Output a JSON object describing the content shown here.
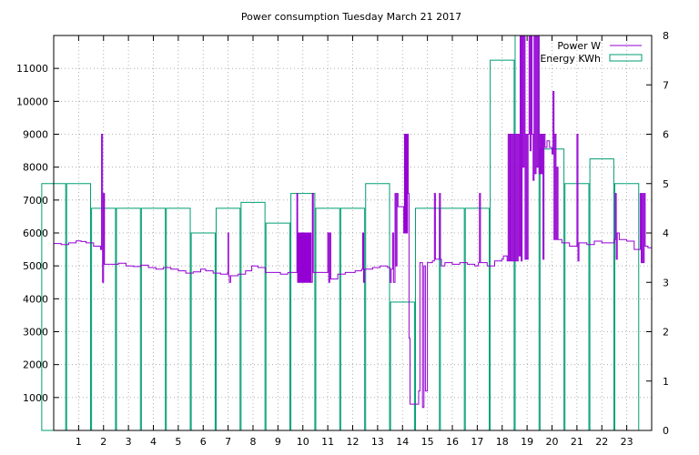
{
  "chart_data": {
    "type": "bar+line",
    "title": "Power consumption Tuesday March 21 2017",
    "xlim": [
      0,
      24
    ],
    "ylim": [
      0,
      12000
    ],
    "y2lim": [
      0,
      8
    ],
    "x_ticks": [
      "1",
      "2",
      "3",
      "4",
      "5",
      "6",
      "7",
      "8",
      "9",
      "10",
      "11",
      "12",
      "13",
      "14",
      "15",
      "16",
      "17",
      "18",
      "19",
      "20",
      "21",
      "22",
      "23"
    ],
    "y_ticks": [
      "1000",
      "2000",
      "3000",
      "4000",
      "5000",
      "6000",
      "7000",
      "8000",
      "9000",
      "10000",
      "11000"
    ],
    "y2_ticks": [
      "0",
      "1",
      "2",
      "3",
      "4",
      "5",
      "6",
      "7",
      "8"
    ],
    "grid": true,
    "legend_position": "top-right",
    "colors": {
      "power": "#9400d3",
      "energy": "#009e73"
    },
    "series": [
      {
        "name": "Power W",
        "axis": "y",
        "style": "line",
        "points": [
          [
            0.0,
            5680
          ],
          [
            0.3,
            5650
          ],
          [
            0.6,
            5700
          ],
          [
            0.9,
            5760
          ],
          [
            1.1,
            5740
          ],
          [
            1.3,
            5700
          ],
          [
            1.6,
            5600
          ],
          [
            1.88,
            5500
          ],
          [
            1.92,
            9000
          ],
          [
            1.96,
            4500
          ],
          [
            2.0,
            7200
          ],
          [
            2.04,
            5050
          ],
          [
            2.3,
            5050
          ],
          [
            2.6,
            5080
          ],
          [
            2.9,
            5000
          ],
          [
            3.2,
            4980
          ],
          [
            3.5,
            5020
          ],
          [
            3.8,
            4950
          ],
          [
            4.1,
            4900
          ],
          [
            4.4,
            4950
          ],
          [
            4.7,
            4900
          ],
          [
            5.0,
            4850
          ],
          [
            5.3,
            4780
          ],
          [
            5.6,
            4820
          ],
          [
            5.9,
            4900
          ],
          [
            6.1,
            4850
          ],
          [
            6.4,
            4780
          ],
          [
            6.7,
            4750
          ],
          [
            6.98,
            4800
          ],
          [
            7.0,
            6000
          ],
          [
            7.02,
            4700
          ],
          [
            7.05,
            4500
          ],
          [
            7.1,
            4700
          ],
          [
            7.4,
            4750
          ],
          [
            7.7,
            4850
          ],
          [
            7.95,
            5000
          ],
          [
            8.2,
            4950
          ],
          [
            8.5,
            4800
          ],
          [
            8.8,
            4800
          ],
          [
            9.1,
            4750
          ],
          [
            9.4,
            4800
          ],
          [
            9.72,
            4800
          ],
          [
            9.76,
            7200
          ],
          [
            9.79,
            4500
          ],
          [
            9.82,
            6000
          ],
          [
            9.85,
            4500
          ],
          [
            9.88,
            6000
          ],
          [
            9.91,
            4500
          ],
          [
            9.94,
            6000
          ],
          [
            9.97,
            4500
          ],
          [
            10.0,
            6000
          ],
          [
            10.03,
            4500
          ],
          [
            10.06,
            6000
          ],
          [
            10.09,
            4500
          ],
          [
            10.12,
            6000
          ],
          [
            10.15,
            4500
          ],
          [
            10.18,
            6000
          ],
          [
            10.21,
            4500
          ],
          [
            10.24,
            6000
          ],
          [
            10.27,
            4500
          ],
          [
            10.3,
            6000
          ],
          [
            10.33,
            4500
          ],
          [
            10.38,
            7200
          ],
          [
            10.42,
            4800
          ],
          [
            10.7,
            4800
          ],
          [
            10.96,
            4800
          ],
          [
            11.0,
            6000
          ],
          [
            11.04,
            4500
          ],
          [
            11.08,
            6000
          ],
          [
            11.12,
            4600
          ],
          [
            11.4,
            4750
          ],
          [
            11.7,
            4800
          ],
          [
            11.9,
            4800
          ],
          [
            12.1,
            4850
          ],
          [
            12.36,
            4900
          ],
          [
            12.4,
            6000
          ],
          [
            12.44,
            4500
          ],
          [
            12.48,
            4900
          ],
          [
            12.8,
            4950
          ],
          [
            13.1,
            5000
          ],
          [
            13.4,
            4950
          ],
          [
            13.5,
            4500
          ],
          [
            13.55,
            4900
          ],
          [
            13.6,
            6000
          ],
          [
            13.64,
            4500
          ],
          [
            13.7,
            7200
          ],
          [
            13.74,
            5000
          ],
          [
            13.78,
            7200
          ],
          [
            13.82,
            6800
          ],
          [
            14.0,
            6800
          ],
          [
            14.05,
            6000
          ],
          [
            14.08,
            9000
          ],
          [
            14.11,
            6000
          ],
          [
            14.14,
            9000
          ],
          [
            14.17,
            6000
          ],
          [
            14.2,
            9000
          ],
          [
            14.23,
            7200
          ],
          [
            14.26,
            2800
          ],
          [
            14.3,
            800
          ],
          [
            14.6,
            800
          ],
          [
            14.65,
            1200
          ],
          [
            14.7,
            5100
          ],
          [
            14.8,
            700
          ],
          [
            14.86,
            5000
          ],
          [
            14.92,
            1200
          ],
          [
            15.0,
            5100
          ],
          [
            15.2,
            5150
          ],
          [
            15.28,
            7200
          ],
          [
            15.32,
            5200
          ],
          [
            15.48,
            7200
          ],
          [
            15.52,
            5200
          ],
          [
            15.56,
            5000
          ],
          [
            15.7,
            5100
          ],
          [
            16.0,
            5050
          ],
          [
            16.3,
            5100
          ],
          [
            16.6,
            5050
          ],
          [
            16.9,
            5000
          ],
          [
            17.05,
            5100
          ],
          [
            17.09,
            7200
          ],
          [
            17.13,
            5100
          ],
          [
            17.4,
            5000
          ],
          [
            17.7,
            5150
          ],
          [
            17.98,
            5200
          ],
          [
            18.05,
            5300
          ],
          [
            18.15,
            5300
          ],
          [
            18.2,
            5150
          ],
          [
            18.24,
            9000
          ],
          [
            18.28,
            5150
          ],
          [
            18.32,
            9000
          ],
          [
            18.36,
            5150
          ],
          [
            18.4,
            9000
          ],
          [
            18.44,
            5150
          ],
          [
            18.48,
            9000
          ],
          [
            18.52,
            5150
          ],
          [
            18.56,
            9000
          ],
          [
            18.6,
            5150
          ],
          [
            18.64,
            9000
          ],
          [
            18.68,
            5300
          ],
          [
            18.72,
            12000
          ],
          [
            18.76,
            5150
          ],
          [
            18.8,
            12000
          ],
          [
            18.84,
            8000
          ],
          [
            18.88,
            12000
          ],
          [
            18.92,
            5200
          ],
          [
            18.96,
            9000
          ],
          [
            19.0,
            5200
          ],
          [
            19.04,
            9000
          ],
          [
            19.08,
            12000
          ],
          [
            19.12,
            8500
          ],
          [
            19.16,
            12000
          ],
          [
            19.2,
            9000
          ],
          [
            19.24,
            7600
          ],
          [
            19.28,
            12000
          ],
          [
            19.32,
            7800
          ],
          [
            19.36,
            12000
          ],
          [
            19.4,
            8000
          ],
          [
            19.44,
            12000
          ],
          [
            19.48,
            7800
          ],
          [
            19.52,
            9000
          ],
          [
            19.56,
            7800
          ],
          [
            19.6,
            9000
          ],
          [
            19.64,
            5200
          ],
          [
            19.68,
            9000
          ],
          [
            19.72,
            8600
          ],
          [
            19.8,
            8800
          ],
          [
            19.9,
            8600
          ],
          [
            20.0,
            8400
          ],
          [
            20.04,
            10300
          ],
          [
            20.08,
            5800
          ],
          [
            20.12,
            9000
          ],
          [
            20.16,
            5800
          ],
          [
            20.2,
            8000
          ],
          [
            20.24,
            5800
          ],
          [
            20.4,
            5700
          ],
          [
            20.7,
            5600
          ],
          [
            20.98,
            5600
          ],
          [
            21.0,
            9000
          ],
          [
            21.04,
            5150
          ],
          [
            21.08,
            5700
          ],
          [
            21.4,
            5650
          ],
          [
            21.7,
            5750
          ],
          [
            22.0,
            5700
          ],
          [
            22.3,
            5700
          ],
          [
            22.5,
            5800
          ],
          [
            22.54,
            7200
          ],
          [
            22.58,
            5200
          ],
          [
            22.62,
            6000
          ],
          [
            22.7,
            5800
          ],
          [
            23.0,
            5750
          ],
          [
            23.3,
            5500
          ],
          [
            23.5,
            5500
          ],
          [
            23.54,
            7200
          ],
          [
            23.58,
            5100
          ],
          [
            23.62,
            7200
          ],
          [
            23.66,
            5100
          ],
          [
            23.7,
            7200
          ],
          [
            23.74,
            5600
          ],
          [
            23.85,
            5550
          ],
          [
            24.0,
            5500
          ]
        ]
      },
      {
        "name": "Energy KWh",
        "axis": "y2",
        "style": "boxes",
        "values": [
          5.0,
          5.0,
          4.5,
          4.5,
          4.5,
          4.5,
          4.0,
          4.5,
          4.62,
          4.2,
          4.8,
          4.5,
          4.5,
          5.0,
          2.6,
          4.5,
          4.5,
          4.5,
          7.5,
          8.0,
          5.7,
          5.0,
          5.5,
          5.0
        ]
      }
    ]
  }
}
